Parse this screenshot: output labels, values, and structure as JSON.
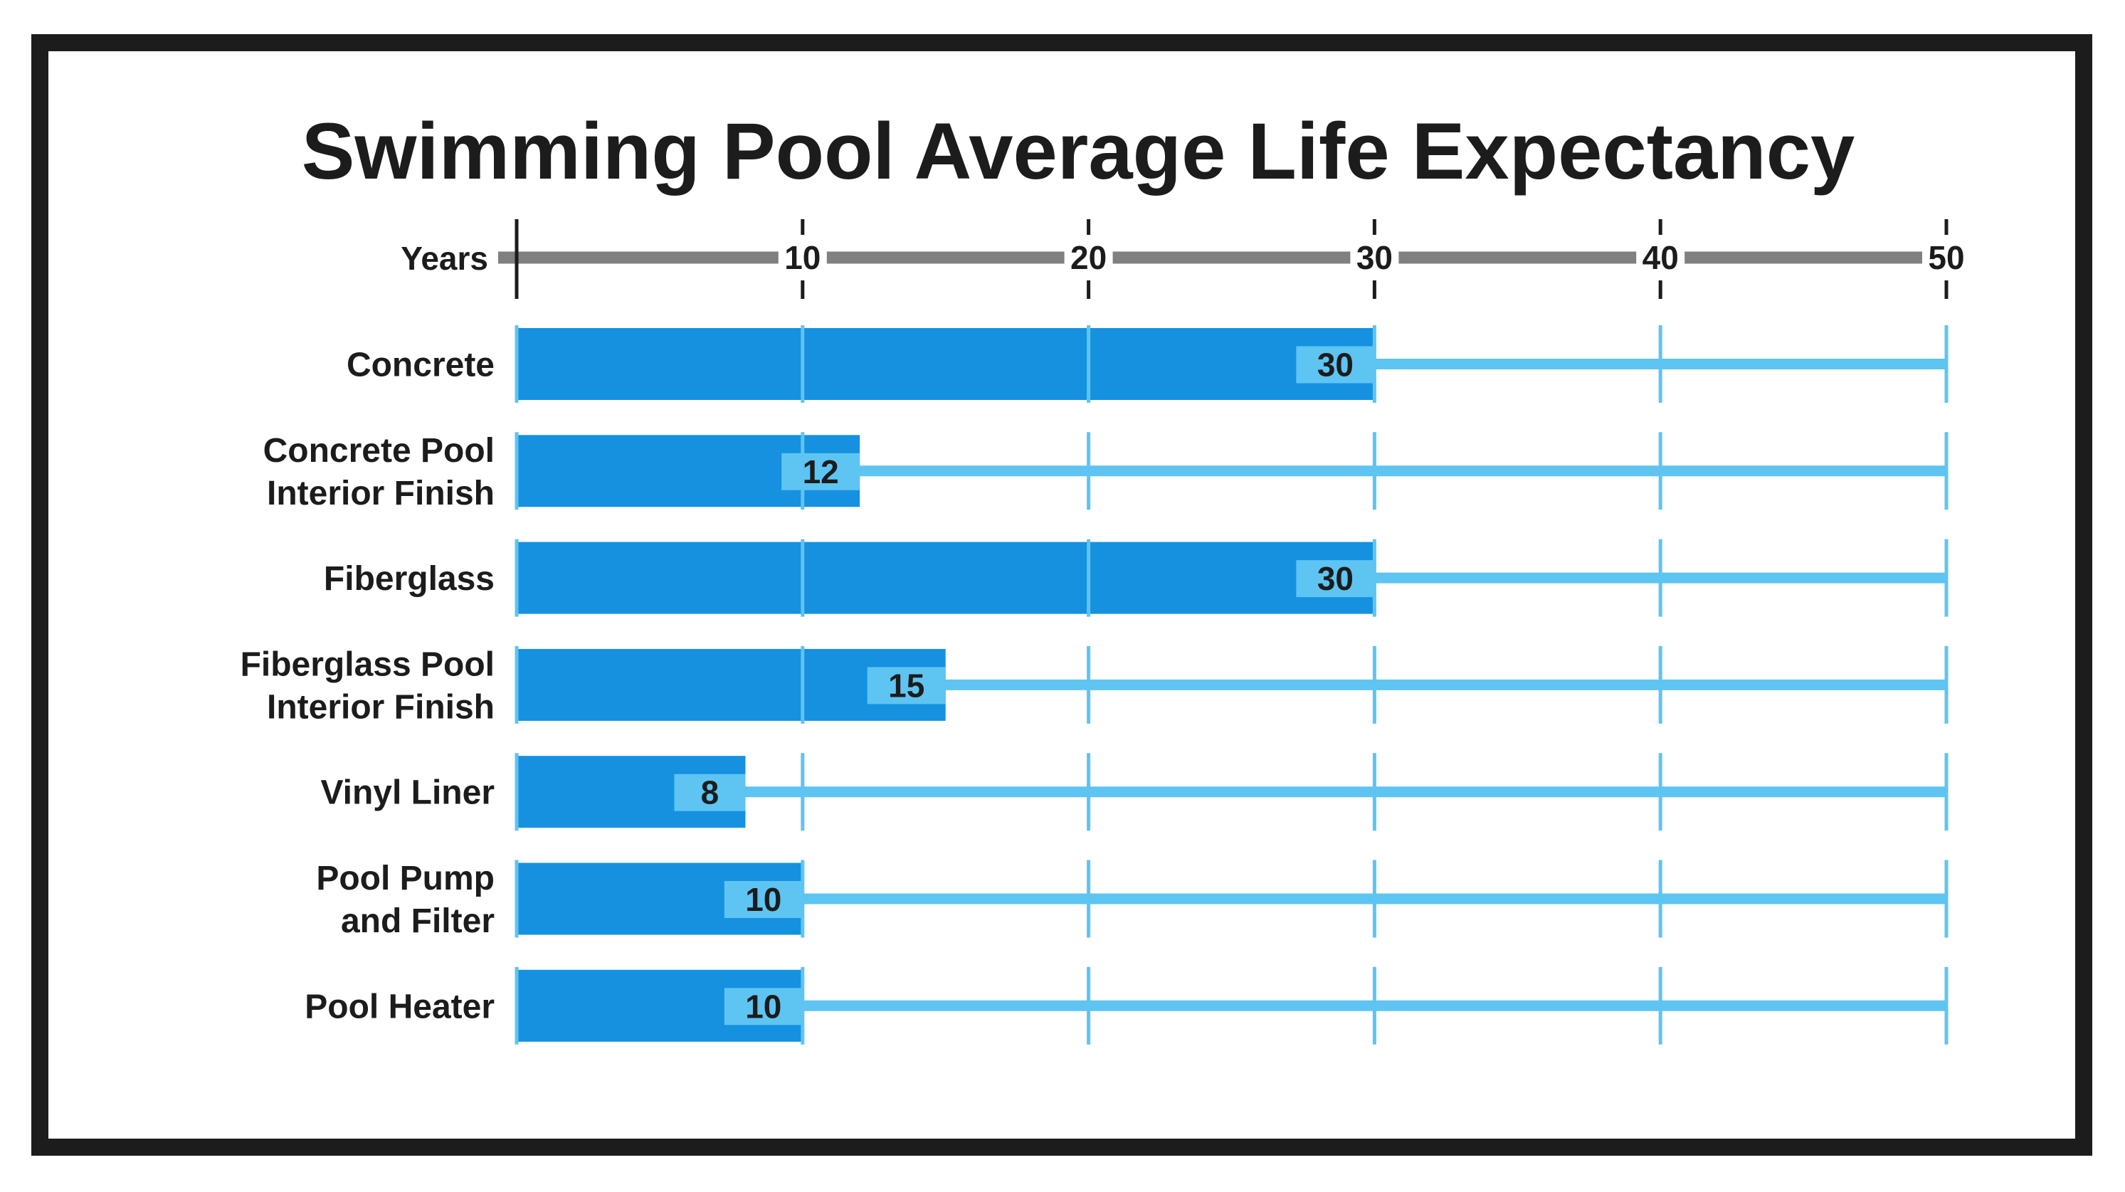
{
  "colors": {
    "frame": "#1c1c1c",
    "bar": "#1591e0",
    "track": "#5ec4f2",
    "axis": "#808080",
    "text": "#1c1c1c"
  },
  "chart_data": {
    "type": "bar",
    "orientation": "horizontal",
    "title": "Swimming Pool Average Life Expectancy",
    "xlabel": "Years",
    "xlim": [
      0,
      50
    ],
    "xticks": [
      10,
      20,
      30,
      40,
      50
    ],
    "grid": true,
    "categories": [
      [
        "Concrete"
      ],
      [
        "Concrete Pool",
        "Interior Finish"
      ],
      [
        "Fiberglass"
      ],
      [
        "Fiberglass Pool",
        "Interior Finish"
      ],
      [
        "Vinyl Liner"
      ],
      [
        "Pool Pump",
        "and Filter"
      ],
      [
        "Pool Heater"
      ]
    ],
    "values": [
      30,
      12,
      30,
      15,
      8,
      10,
      10
    ]
  }
}
